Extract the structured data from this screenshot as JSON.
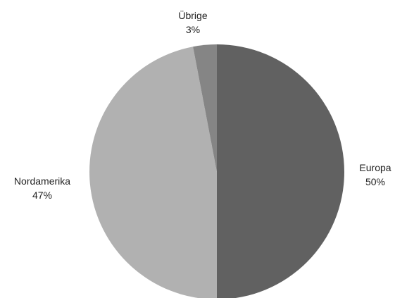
{
  "chart_data": {
    "type": "pie",
    "title": "",
    "slices": [
      {
        "label": "Europa",
        "value": 50,
        "pct_label": "50%",
        "color": "#616161"
      },
      {
        "label": "Nordamerika",
        "value": 47,
        "pct_label": "47%",
        "color": "#b1b1b1"
      },
      {
        "label": "Übrige",
        "value": 3,
        "pct_label": "3%",
        "color": "#858585"
      }
    ],
    "start_angle_deg": 0,
    "direction": "clockwise",
    "legend": "none",
    "labels": "outside"
  }
}
